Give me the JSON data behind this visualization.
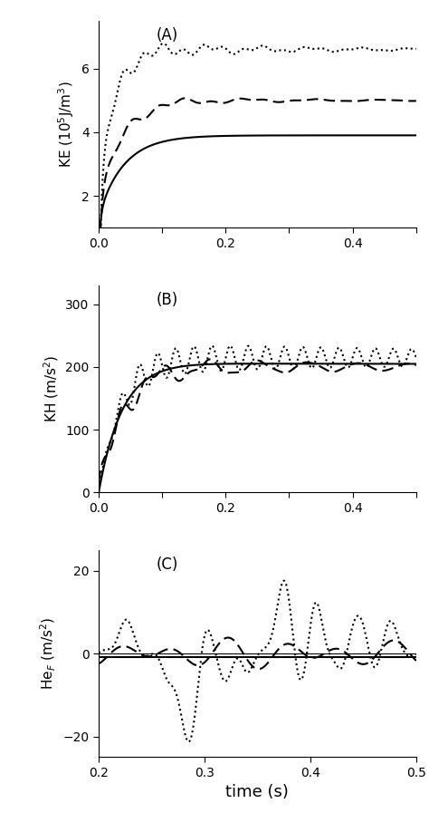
{
  "panel_A": {
    "label": "(A)",
    "ylabel": "KE ($10^5$J/m$^3$)",
    "xlim": [
      0,
      0.5
    ],
    "ylim": [
      1.0,
      7.5
    ],
    "yticks": [
      2,
      4,
      6
    ],
    "xticks": [
      0.0,
      0.1,
      0.2,
      0.3,
      0.4,
      0.5
    ],
    "xticklabels": [
      "0.0",
      "",
      "0.2",
      "",
      "0.4",
      ""
    ]
  },
  "panel_B": {
    "label": "(B)",
    "ylabel": "KH (m/s$^2$)",
    "xlim": [
      0,
      0.5
    ],
    "ylim": [
      0,
      330
    ],
    "yticks": [
      0,
      100,
      200,
      300
    ],
    "xticks": [
      0.0,
      0.1,
      0.2,
      0.3,
      0.4,
      0.5
    ],
    "xticklabels": [
      "0.0",
      "",
      "0.2",
      "",
      "0.4",
      ""
    ]
  },
  "panel_C": {
    "label": "(C)",
    "ylabel": "He$_F$ (m/s$^2$)",
    "xlabel": "time (s)",
    "xlim": [
      0.2,
      0.5
    ],
    "ylim": [
      -25,
      25
    ],
    "yticks": [
      -20,
      0,
      20
    ],
    "xticks": [
      0.2,
      0.3,
      0.4,
      0.5
    ],
    "xticklabels": [
      "0.2",
      "0.3",
      "0.4",
      "0.5"
    ]
  },
  "line_styles": {
    "solid": {
      "linestyle": "-",
      "color": "black",
      "linewidth": 1.5
    },
    "dashed": {
      "linestyle": "--",
      "color": "black",
      "linewidth": 1.5
    },
    "dotted": {
      "linestyle": ":",
      "color": "black",
      "linewidth": 1.5
    }
  }
}
